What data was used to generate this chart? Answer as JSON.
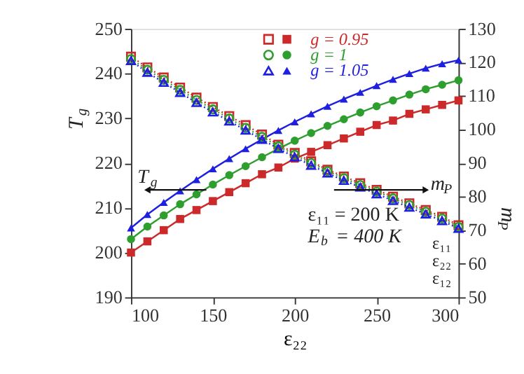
{
  "chart_data": {
    "type": "line",
    "xlabel": "ε₂₂",
    "ylabel": "T$_{g}$",
    "y2label": "m$_{P}$",
    "x": [
      100,
      110,
      120,
      130,
      140,
      150,
      160,
      170,
      180,
      190,
      200,
      210,
      220,
      230,
      240,
      250,
      260,
      270,
      280,
      290,
      300
    ],
    "xlim": [
      100,
      300
    ],
    "xticks": [
      100,
      150,
      200,
      250,
      300
    ],
    "ylim": [
      190,
      250
    ],
    "yticks": [
      190,
      200,
      210,
      220,
      230,
      240,
      250
    ],
    "y2lim": [
      50,
      130
    ],
    "y2ticks": [
      50,
      60,
      70,
      80,
      90,
      100,
      110,
      120,
      130
    ],
    "grid": false,
    "legend": "top right",
    "series": [
      {
        "name": "g = 0.95",
        "color": "#cc2a2a",
        "marker": "square",
        "line_style": "solid",
        "values": [
          200,
          202.5,
          205,
          207.5,
          209.5,
          211.5,
          213.5,
          215.5,
          217.5,
          219,
          221,
          222.5,
          224,
          225.5,
          227,
          228.5,
          229.5,
          231,
          232,
          233,
          234
        ]
      },
      {
        "name": "g = 1",
        "color": "#2e9e2e",
        "marker": "circle",
        "line_style": "solid",
        "values": [
          203,
          205.8,
          208.3,
          210.8,
          213,
          215.2,
          217.3,
          219.3,
          221.3,
          223.2,
          225,
          226.7,
          228.3,
          229.8,
          231.3,
          232.7,
          234,
          235.3,
          236.5,
          237.5,
          238.5
        ]
      },
      {
        "name": "g = 1.05",
        "color": "#1f1fe0",
        "marker": "triangle",
        "line_style": "solid",
        "values": [
          205.5,
          208.5,
          211.2,
          213.8,
          216.3,
          218.7,
          221,
          223.2,
          225.3,
          227.3,
          229.2,
          231,
          232.7,
          234.3,
          235.8,
          237.3,
          238.7,
          240,
          241.2,
          242.2,
          243
        ]
      },
      {
        "color": "#cc2a2a",
        "marker": "square",
        "line_style": "dotted",
        "axis": "y2",
        "values": [
          121.7,
          118.5,
          115.5,
          112.5,
          109.5,
          106.7,
          104,
          101.3,
          98.5,
          95.5,
          93,
          90.5,
          88,
          86,
          84,
          82,
          80,
          78,
          76,
          74,
          71.5
        ]
      },
      {
        "color": "#2e9e2e",
        "marker": "circle",
        "line_style": "dotted",
        "axis": "y2",
        "values": [
          121,
          117.8,
          114.8,
          111.8,
          108.8,
          106,
          103.3,
          100.5,
          97.8,
          95,
          92.5,
          90,
          87.6,
          85.5,
          83.5,
          81.5,
          79.5,
          77.5,
          75.5,
          73.5,
          71
        ]
      },
      {
        "color": "#1f1fe0",
        "marker": "triangle",
        "line_style": "dotted",
        "axis": "y2",
        "values": [
          120.5,
          117,
          114,
          111,
          108,
          105.2,
          102.5,
          99.8,
          97,
          94.3,
          91.8,
          89.3,
          87,
          84.8,
          82.8,
          80.8,
          78.8,
          76.8,
          74.8,
          72.8,
          70.5
        ]
      }
    ],
    "annotations": [
      "ε₁₁ = 200 K",
      "E$_{b}$ = 400 K",
      "T$_{g}$",
      "m$_{P}$",
      "ε₁₁",
      "ε₂₂",
      "ε₁₂"
    ]
  }
}
